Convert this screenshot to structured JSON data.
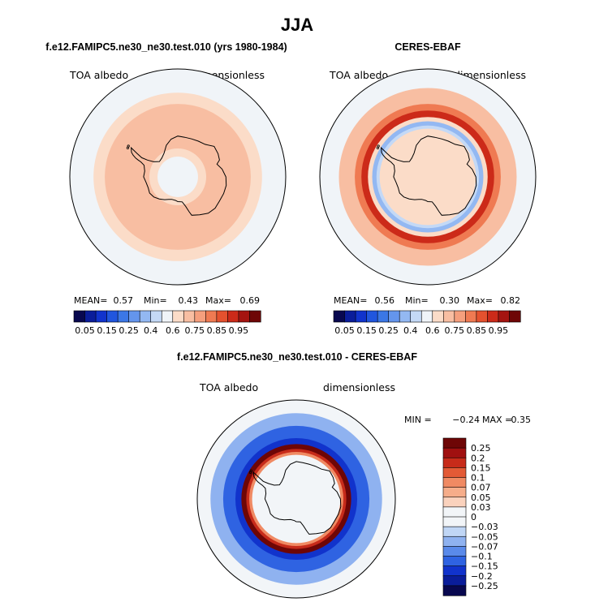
{
  "figure": {
    "season_title": "JJA"
  },
  "chart_data": [
    {
      "type": "heatmap",
      "projection": "south-polar-stereographic",
      "title": "f.e12.FAMIPC5.ne30_ne30.test.010 (yrs 1980-1984)",
      "left_label": "TOA albedo",
      "right_label": "dimensionless",
      "stats": {
        "mean_label": "MEAN=",
        "mean": "0.57",
        "min_label": "Min=",
        "min": "0.43",
        "max_label": "Max=",
        "max": "0.69"
      },
      "colorbar": {
        "orientation": "horizontal",
        "levels": [
          0.05,
          0.1,
          0.15,
          0.2,
          0.25,
          0.3,
          0.35,
          0.4,
          0.5,
          0.6,
          0.65,
          0.7,
          0.75,
          0.8,
          0.85,
          0.9,
          0.95
        ],
        "tick_labels": [
          "0.05",
          "0.15",
          "0.25",
          "0.4",
          "0.6",
          "0.75",
          "0.85",
          "0.95"
        ],
        "colors": [
          "#08084f",
          "#0a1d9a",
          "#1133cc",
          "#2156de",
          "#3b77e6",
          "#6495ec",
          "#93b8f2",
          "#c4d9f6",
          "#f0f4f8",
          "#fbdcc8",
          "#f8bea2",
          "#f59f7d",
          "#ef7a52",
          "#e4512e",
          "#cc2a19",
          "#a51410",
          "#6e0606"
        ]
      },
      "rings": [
        {
          "from_lat": -40,
          "to_lat": -50,
          "value": 0.45
        },
        {
          "from_lat": -50,
          "to_lat": -55,
          "value": 0.55
        },
        {
          "from_lat": -55,
          "to_lat": -76,
          "value": 0.62
        },
        {
          "from_lat": -76,
          "to_lat": -80,
          "value": 0.55
        },
        {
          "from_lat": -80,
          "to_lat": -90,
          "value": 0.42
        }
      ]
    },
    {
      "type": "heatmap",
      "projection": "south-polar-stereographic",
      "title": "CERES-EBAF",
      "left_label": "TOA albedo",
      "right_label": "dimensionless",
      "stats": {
        "mean_label": "MEAN=",
        "mean": "0.56",
        "min_label": "Min=",
        "min": "0.30",
        "max_label": "Max=",
        "max": "0.82"
      },
      "colorbar": {
        "orientation": "horizontal",
        "levels": [
          0.05,
          0.1,
          0.15,
          0.2,
          0.25,
          0.3,
          0.35,
          0.4,
          0.5,
          0.6,
          0.65,
          0.7,
          0.75,
          0.8,
          0.85,
          0.9,
          0.95
        ],
        "tick_labels": [
          "0.05",
          "0.15",
          "0.25",
          "0.4",
          "0.6",
          "0.75",
          "0.85",
          "0.95"
        ],
        "colors": [
          "#08084f",
          "#0a1d9a",
          "#1133cc",
          "#2156de",
          "#3b77e6",
          "#6495ec",
          "#93b8f2",
          "#c4d9f6",
          "#f0f4f8",
          "#fbdcc8",
          "#f8bea2",
          "#f59f7d",
          "#ef7a52",
          "#e4512e",
          "#cc2a19",
          "#a51410",
          "#6e0606"
        ]
      },
      "rings": [
        {
          "from_lat": -40,
          "to_lat": -48,
          "value": 0.45
        },
        {
          "from_lat": -48,
          "to_lat": -55,
          "value": 0.62
        },
        {
          "from_lat": -55,
          "to_lat": -58,
          "value": 0.72
        },
        {
          "from_lat": -58,
          "to_lat": -61,
          "value": 0.82
        },
        {
          "from_lat": -61,
          "to_lat": -63,
          "value": 0.52
        },
        {
          "from_lat": -63,
          "to_lat": -65,
          "value": 0.32
        },
        {
          "from_lat": -65,
          "to_lat": -66.5,
          "value": 0.38
        },
        {
          "from_lat": -66.5,
          "to_lat": -90,
          "value": 0.55
        }
      ]
    },
    {
      "type": "heatmap",
      "projection": "south-polar-stereographic",
      "title": "f.e12.FAMIPC5.ne30_ne30.test.010 - CERES-EBAF",
      "left_label": "TOA albedo",
      "right_label": "dimensionless",
      "stats": {
        "min_label": "MIN =",
        "min": "−0.24",
        "max_label": "MAX =",
        "max": "0.35"
      },
      "colorbar": {
        "orientation": "vertical",
        "levels": [
          -0.25,
          -0.2,
          -0.15,
          -0.1,
          -0.07,
          -0.05,
          -0.03,
          0,
          0.03,
          0.05,
          0.07,
          0.1,
          0.15,
          0.2,
          0.25
        ],
        "tick_labels": [
          "0.25",
          "0.2",
          "0.15",
          "0.1",
          "0.07",
          "0.05",
          "0.03",
          "0",
          "−0.03",
          "−0.05",
          "−0.07",
          "−0.1",
          "−0.15",
          "−0.2",
          "−0.25"
        ],
        "colors": [
          "#08084f",
          "#0a1d9a",
          "#1133cc",
          "#2f63e2",
          "#5a8aea",
          "#8fb2f0",
          "#c0d6f5",
          "#f2f5f8",
          "#f2f5f8",
          "#fad2bd",
          "#f6ad8a",
          "#f08a63",
          "#e35a36",
          "#c72b1a",
          "#a01010",
          "#6e0606"
        ]
      },
      "rings": [
        {
          "from_lat": -40,
          "to_lat": -46,
          "value": 0.01
        },
        {
          "from_lat": -46,
          "to_lat": -52,
          "value": -0.06
        },
        {
          "from_lat": -52,
          "to_lat": -58,
          "value": -0.12
        },
        {
          "from_lat": -58,
          "to_lat": -61,
          "value": -0.2
        },
        {
          "from_lat": -61,
          "to_lat": -63.5,
          "value": 0.3
        },
        {
          "from_lat": -63.5,
          "to_lat": -65,
          "value": 0.16
        },
        {
          "from_lat": -65,
          "to_lat": -66.5,
          "value": 0.08
        },
        {
          "from_lat": -66.5,
          "to_lat": -90,
          "value": 0.0
        }
      ]
    }
  ]
}
